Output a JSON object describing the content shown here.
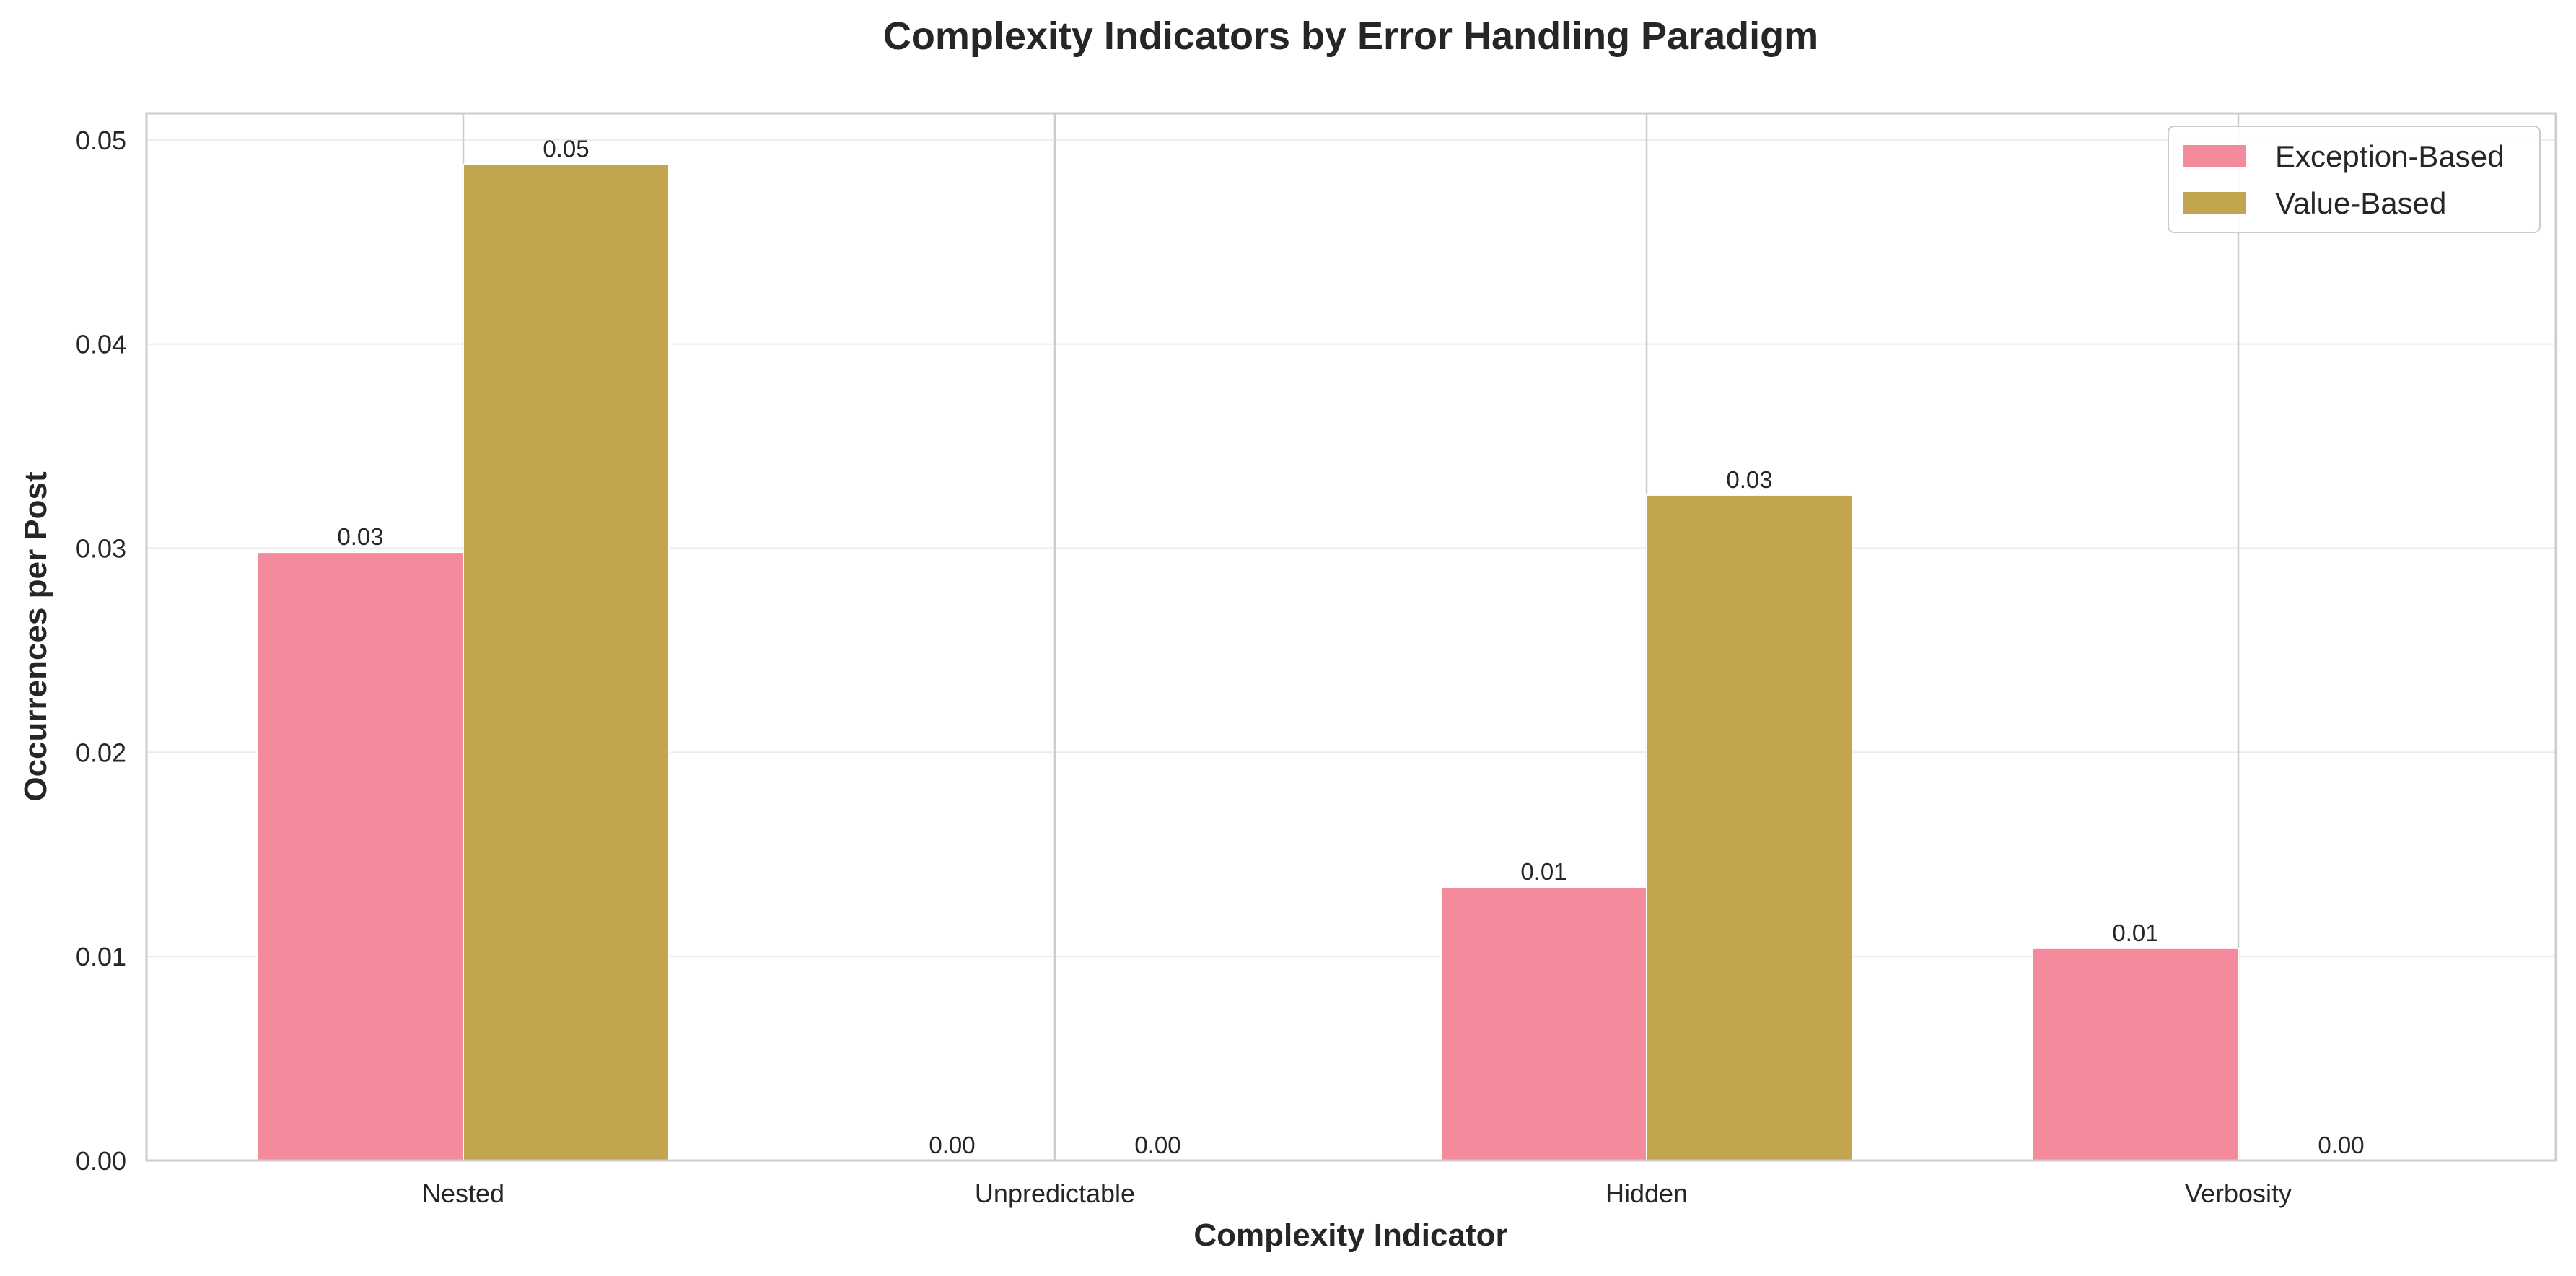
{
  "chart_data": {
    "type": "bar",
    "title": "Complexity Indicators by Error Handling Paradigm",
    "xlabel": "Complexity Indicator",
    "ylabel": "Occurrences per Post",
    "categories": [
      "Nested",
      "Unpredictable",
      "Hidden",
      "Verbosity"
    ],
    "series": [
      {
        "name": "Exception-Based",
        "color": "#f48a9c",
        "values": [
          0.0298,
          0.0,
          0.0134,
          0.0104
        ],
        "labels": [
          "0.03",
          "0.00",
          "0.01",
          "0.01"
        ]
      },
      {
        "name": "Value-Based",
        "color": "#c4a54f",
        "values": [
          0.0488,
          0.0,
          0.0326,
          0.0
        ],
        "labels": [
          "0.05",
          "0.00",
          "0.03",
          "0.00"
        ]
      }
    ],
    "ylim": [
      0,
      0.0513
    ],
    "yticks": [
      0.0,
      0.01,
      0.02,
      0.03,
      0.04,
      0.05
    ],
    "ytick_labels": [
      "0.00",
      "0.01",
      "0.02",
      "0.03",
      "0.04",
      "0.05"
    ],
    "grid": true,
    "legend_position": "top-right"
  }
}
